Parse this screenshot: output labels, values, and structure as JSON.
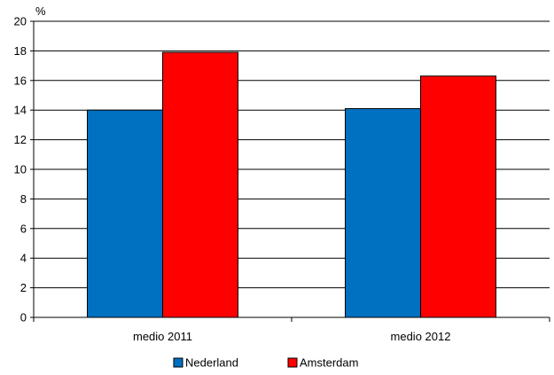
{
  "chart_data": {
    "type": "bar",
    "categories": [
      "medio 2011",
      "medio 2012"
    ],
    "series": [
      {
        "name": "Nederland",
        "values": [
          14.0,
          14.1
        ],
        "color": "#0070C0"
      },
      {
        "name": "Amsterdam",
        "values": [
          17.9,
          16.3
        ],
        "color": "#FF0000"
      }
    ],
    "ylabel": "%",
    "ylim": [
      0,
      20
    ],
    "yticks": [
      0,
      2,
      4,
      6,
      8,
      10,
      12,
      14,
      16,
      18,
      20
    ],
    "grid": true,
    "legend_position": "bottom"
  }
}
